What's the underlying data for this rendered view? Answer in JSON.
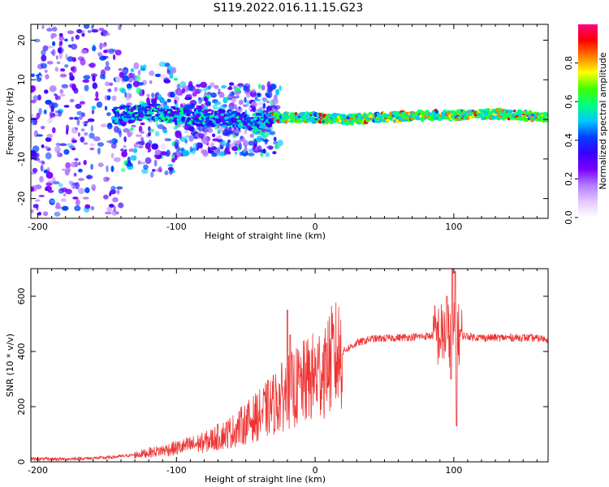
{
  "title": "S119.2022.016.11.15.G23",
  "chart_data": [
    {
      "type": "heatmap",
      "xlabel": "Height of straight line (km)",
      "ylabel": "Frequency (Hz)",
      "xlim": [
        -205,
        168
      ],
      "ylim": [
        -25,
        24
      ],
      "x_ticks": [
        -200,
        -100,
        0,
        100
      ],
      "y_ticks": [
        -20,
        -10,
        0,
        10,
        20
      ],
      "grid": false,
      "colorbar": {
        "label": "Normalized spectral amplitude",
        "range": [
          0,
          1
        ],
        "ticks": [
          0.0,
          0.2,
          0.4,
          0.6,
          0.8
        ],
        "colormap": [
          "#ffffff",
          "#e6c8ff",
          "#b27cff",
          "#7a00ff",
          "#3a00ff",
          "#0040ff",
          "#00c8ff",
          "#00ff80",
          "#40ff00",
          "#ffff00",
          "#ff8000",
          "#ff0000",
          "#ff0080"
        ]
      },
      "ridge": [
        {
          "x": -140,
          "freq": 1.0
        },
        {
          "x": -120,
          "freq": 2.0
        },
        {
          "x": -100,
          "freq": 1.0
        },
        {
          "x": -80,
          "freq": 0.5
        },
        {
          "x": -60,
          "freq": 0.0
        },
        {
          "x": -45,
          "freq": -1.0
        },
        {
          "x": -30,
          "freq": 0.5
        },
        {
          "x": 0,
          "freq": 0.5
        },
        {
          "x": 20,
          "freq": 0.0
        },
        {
          "x": 50,
          "freq": 0.5
        },
        {
          "x": 80,
          "freq": 1.0
        },
        {
          "x": 100,
          "freq": 1.0
        },
        {
          "x": 130,
          "freq": 1.5
        },
        {
          "x": 168,
          "freq": 0.5
        }
      ]
    },
    {
      "type": "line",
      "xlabel": "Height of straight line (km)",
      "ylabel": "SNR (10 * v/v)",
      "xlim": [
        -205,
        168
      ],
      "ylim": [
        0,
        700
      ],
      "x_ticks": [
        -200,
        -100,
        0,
        100
      ],
      "y_ticks": [
        0,
        200,
        400,
        600
      ],
      "grid": false,
      "color": "#ee3333",
      "trend": [
        {
          "x": -205,
          "y": 10
        },
        {
          "x": -180,
          "y": 10
        },
        {
          "x": -150,
          "y": 15
        },
        {
          "x": -130,
          "y": 25
        },
        {
          "x": -100,
          "y": 50
        },
        {
          "x": -80,
          "y": 70
        },
        {
          "x": -60,
          "y": 110
        },
        {
          "x": -40,
          "y": 170
        },
        {
          "x": -20,
          "y": 250
        },
        {
          "x": 0,
          "y": 310
        },
        {
          "x": 10,
          "y": 360
        },
        {
          "x": 20,
          "y": 400
        },
        {
          "x": 30,
          "y": 430
        },
        {
          "x": 40,
          "y": 445
        },
        {
          "x": 60,
          "y": 450
        },
        {
          "x": 80,
          "y": 455
        },
        {
          "x": 90,
          "y": 460
        },
        {
          "x": 100,
          "y": 460
        },
        {
          "x": 120,
          "y": 450
        },
        {
          "x": 150,
          "y": 450
        },
        {
          "x": 168,
          "y": 445
        }
      ],
      "spikes": [
        {
          "x": -20,
          "y": 550
        },
        {
          "x": -18,
          "y": 460
        },
        {
          "x": 8,
          "y": 430
        },
        {
          "x": 95,
          "y": 600
        },
        {
          "x": 99,
          "y": 700
        },
        {
          "x": 101,
          "y": 690
        },
        {
          "x": 102,
          "y": 130
        },
        {
          "x": 98,
          "y": 300
        }
      ]
    }
  ]
}
